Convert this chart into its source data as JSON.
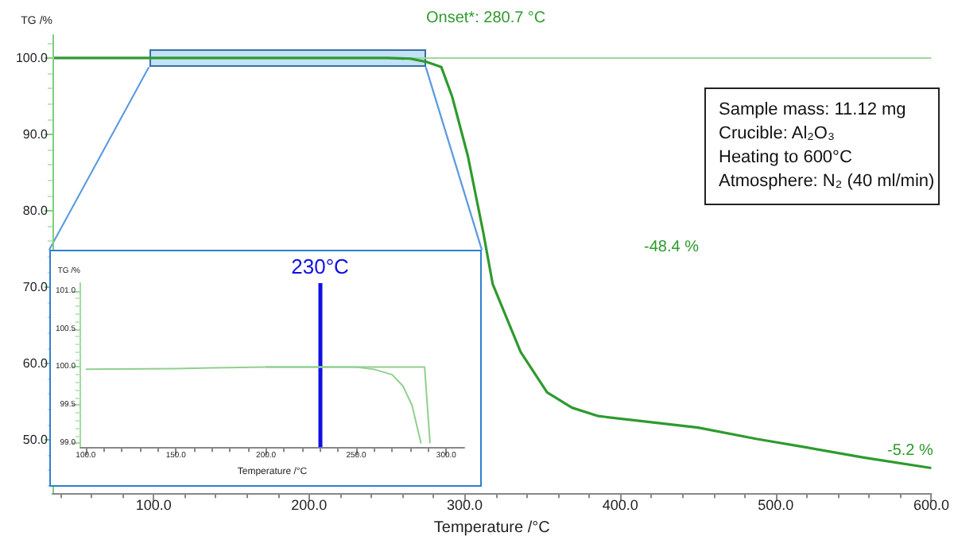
{
  "chart_data": [
    {
      "type": "line",
      "ylabel": "TG /%",
      "xlabel": "Temperature /°C",
      "x": [
        36,
        150,
        250,
        265,
        275,
        285,
        292,
        302,
        312,
        318,
        336,
        353,
        369,
        386,
        420,
        450,
        488,
        520,
        556,
        600
      ],
      "series": [
        {
          "color": "#2e9a2e",
          "values": [
            100,
            100,
            100,
            99.9,
            99.5,
            98.8,
            94.9,
            87.2,
            77.1,
            70.4,
            61.5,
            56.2,
            54.2,
            53.1,
            52.3,
            51.6,
            50.1,
            49.0,
            47.7,
            46.3
          ]
        }
      ],
      "xlim": [
        35,
        600
      ],
      "ylim": [
        43,
        103
      ],
      "xticks": [
        {
          "value": 100,
          "label": "100.0"
        },
        {
          "value": 200,
          "label": "200.0"
        },
        {
          "value": 300,
          "label": "300.0"
        },
        {
          "value": 400,
          "label": "400.0"
        },
        {
          "value": 500,
          "label": "500.0"
        },
        {
          "value": 600,
          "label": "600.0"
        }
      ],
      "yticks": [
        {
          "value": 50,
          "label": "50.0"
        },
        {
          "value": 60,
          "label": "60.0"
        },
        {
          "value": 70,
          "label": "70.0"
        },
        {
          "value": 80,
          "label": "80.0"
        },
        {
          "value": 90,
          "label": "90.0"
        },
        {
          "value": 100,
          "label": "100.0"
        }
      ],
      "ref_lines": [
        {
          "axis": "y",
          "value": 100,
          "color": "#9fd89f"
        }
      ],
      "annotations": [
        "Onset*: 280.7 °C",
        "-48.4 %",
        "-5.2 %",
        "Sample mass: 11.12 mg",
        "Crucible: Al₂O₃",
        "Heating to 600°C",
        "Atmosphere: N₂ (40 ml/min)"
      ],
      "grid": false,
      "marker": "none",
      "line_style": "solid"
    },
    {
      "type": "line",
      "ylabel": "TG /%",
      "xlabel": "Temperature /°C",
      "x": [
        100,
        150,
        200,
        230,
        250,
        260,
        270,
        276,
        281,
        284,
        286
      ],
      "series": [
        {
          "color": "#8fd08f",
          "values": [
            99.97,
            99.98,
            100.0,
            100.0,
            100.0,
            99.97,
            99.9,
            99.75,
            99.5,
            99.2,
            99.0
          ]
        },
        {
          "color": "#8fd08f",
          "x": [
            200,
            288,
            291
          ],
          "values": [
            100.0,
            100.0,
            99.0
          ]
        }
      ],
      "xlim": [
        97,
        310
      ],
      "ylim": [
        98.95,
        101.1
      ],
      "xticks": [
        {
          "value": 100,
          "label": "100.0"
        },
        {
          "value": 150,
          "label": "150.0"
        },
        {
          "value": 200,
          "label": "200.0"
        },
        {
          "value": 250,
          "label": "250.0"
        },
        {
          "value": 300,
          "label": "300.0"
        }
      ],
      "yticks": [
        {
          "value": 99,
          "label": "99.0"
        },
        {
          "value": 99.5,
          "label": "99.5"
        },
        {
          "value": 100,
          "label": "100.0"
        },
        {
          "value": 100.5,
          "label": "100.5"
        },
        {
          "value": 101,
          "label": "101.0"
        }
      ],
      "ref_lines": [
        {
          "axis": "x",
          "value": 230,
          "label": "230°C",
          "color": "#1010e0"
        }
      ],
      "grid": false,
      "marker": "none",
      "line_style": "solid"
    }
  ]
}
